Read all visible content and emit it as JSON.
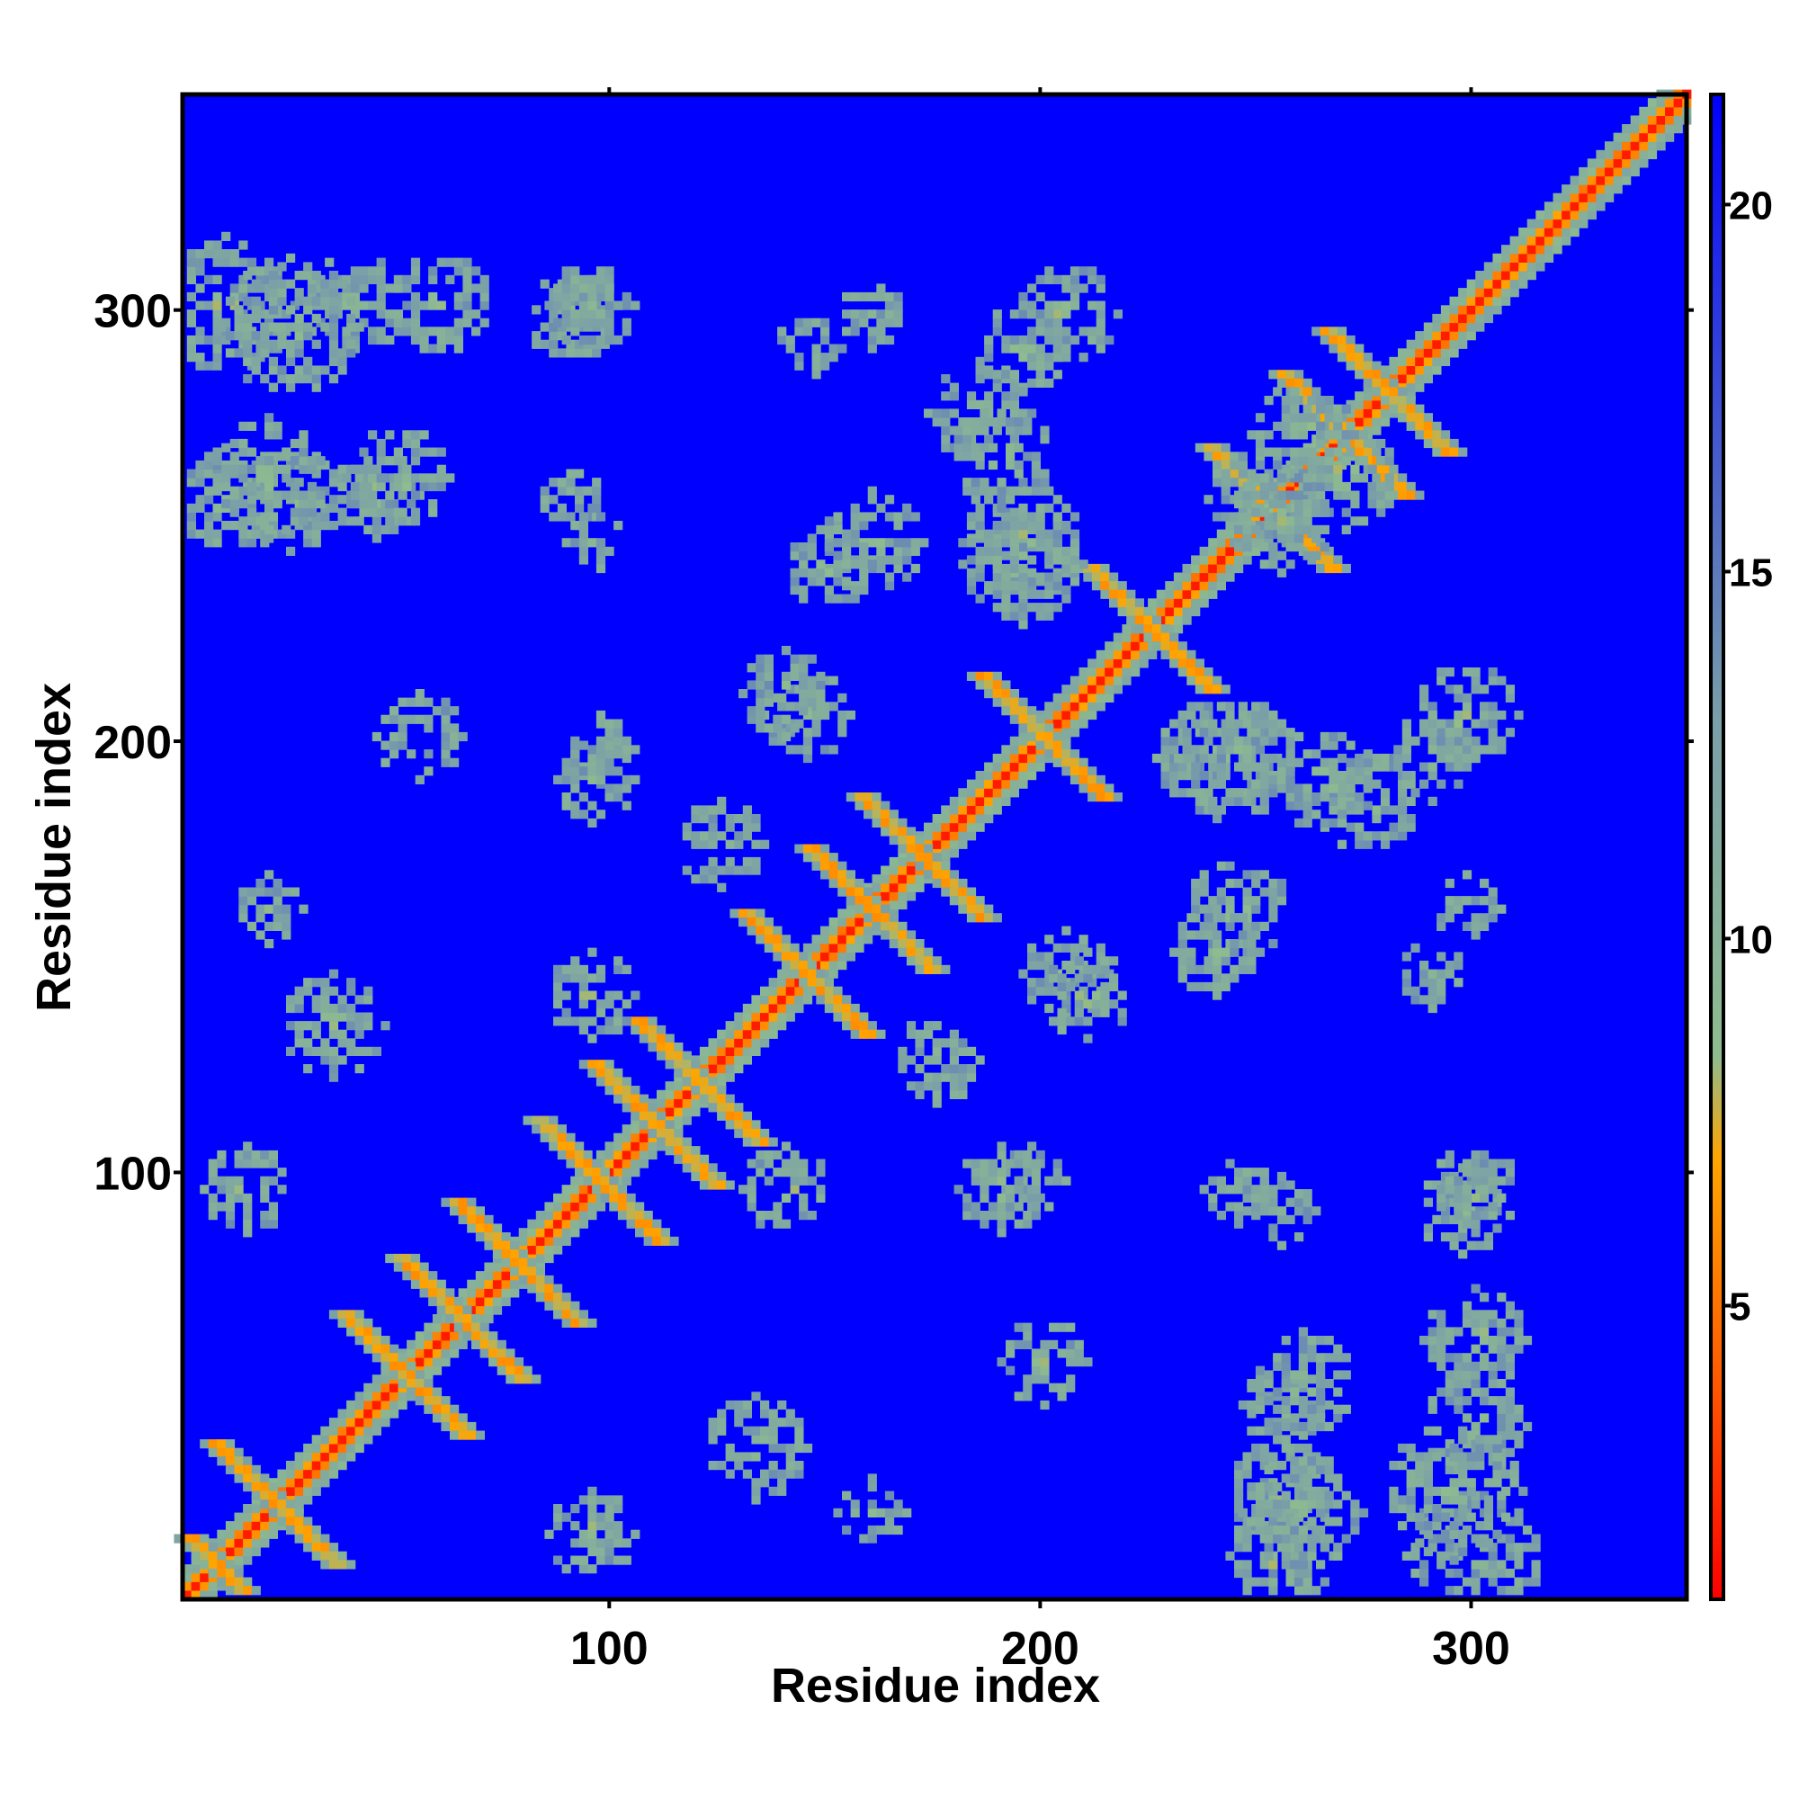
{
  "chart_data": {
    "type": "heatmap",
    "title": "",
    "xlabel": "Residue index",
    "ylabel": "Residue index",
    "n_residues": 350,
    "xlim": [
      1,
      350
    ],
    "ylim": [
      1,
      350
    ],
    "x_ticks": [
      100,
      200,
      300
    ],
    "y_ticks": [
      100,
      200,
      300
    ],
    "x_tick_labels": [
      "100",
      "200",
      "300"
    ],
    "y_tick_labels": [
      "100",
      "200",
      "300"
    ],
    "colorbar": {
      "range": [
        1,
        21.5
      ],
      "ticks": [
        5,
        10,
        15,
        20
      ],
      "tick_labels": [
        "5",
        "10",
        "15",
        "20"
      ],
      "position": "right"
    },
    "color_scale": [
      {
        "value": 1,
        "color": "#ff0000"
      },
      {
        "value": 4,
        "color": "#ff5a00"
      },
      {
        "value": 7,
        "color": "#ffa500"
      },
      {
        "value": 8.4,
        "color": "#8fbc8f"
      },
      {
        "value": 13,
        "color": "#7a9fa8"
      },
      {
        "value": 21.5,
        "color": "#0000ff"
      }
    ],
    "background_color": "#0000ff",
    "diagonal_value": 3.8,
    "cutoff": 14,
    "motif_crosses": [
      [
        8,
        8
      ],
      [
        22,
        22
      ],
      [
        52,
        52
      ],
      [
        65,
        65
      ],
      [
        78,
        78
      ],
      [
        97,
        97
      ],
      [
        110,
        110
      ],
      [
        120,
        120
      ],
      [
        145,
        145
      ],
      [
        160,
        160
      ],
      [
        172,
        172
      ],
      [
        200,
        200
      ],
      [
        225,
        225
      ],
      [
        253,
        253
      ],
      [
        270,
        270
      ],
      [
        280,
        280
      ]
    ],
    "contact_patches": [
      [
        10,
        300,
        8
      ],
      [
        40,
        300,
        6
      ],
      [
        90,
        297,
        5
      ],
      [
        160,
        298,
        4
      ],
      [
        205,
        298,
        6
      ],
      [
        10,
        255,
        6
      ],
      [
        25,
        255,
        6
      ],
      [
        45,
        256,
        5
      ],
      [
        90,
        255,
        4
      ],
      [
        97,
        197,
        4
      ],
      [
        160,
        245,
        6
      ],
      [
        195,
        240,
        7
      ],
      [
        185,
        275,
        6
      ],
      [
        20,
        160,
        4
      ],
      [
        35,
        133,
        6
      ],
      [
        15,
        95,
        5
      ],
      [
        140,
        95,
        5
      ],
      [
        190,
        95,
        5
      ],
      [
        245,
        95,
        4
      ],
      [
        300,
        95,
        5
      ],
      [
        200,
        55,
        5
      ],
      [
        260,
        50,
        6
      ],
      [
        300,
        60,
        6
      ],
      [
        260,
        20,
        7
      ],
      [
        295,
        25,
        8
      ],
      [
        245,
        195,
        7
      ],
      [
        290,
        195,
        5
      ],
      [
        290,
        145,
        4
      ],
      [
        240,
        150,
        5
      ],
      [
        205,
        145,
        5
      ],
      [
        260,
        270,
        6
      ],
      [
        250,
        255,
        6
      ],
      [
        300,
        95,
        3
      ],
      [
        125,
        175,
        5
      ],
      [
        140,
        210,
        5
      ],
      [
        190,
        265,
        6
      ]
    ]
  }
}
